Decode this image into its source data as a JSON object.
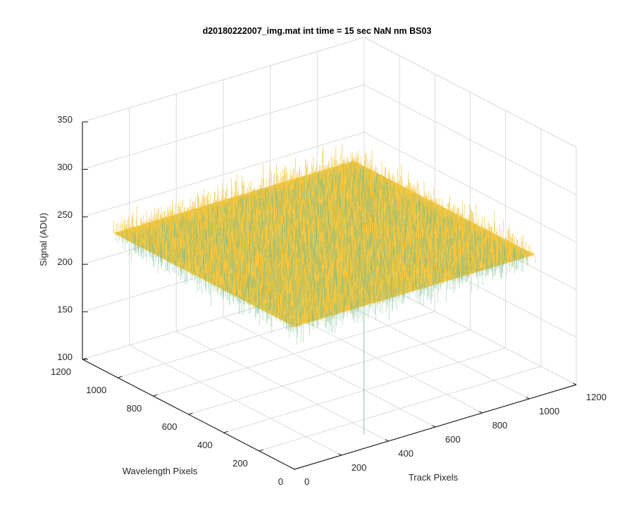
{
  "chart_data": {
    "type": "surface",
    "title": "d20180222007_img.mat int time = 15 sec  NaN nm BS03",
    "xlabel": "Track Pixels",
    "ylabel": "Wavelength Pixels",
    "zlabel": "Signal (ADU)",
    "xlim": [
      0,
      1200
    ],
    "ylim": [
      0,
      1200
    ],
    "zlim": [
      100,
      350
    ],
    "xticks": [
      0,
      200,
      400,
      600,
      800,
      1000,
      1200
    ],
    "yticks": [
      0,
      200,
      400,
      600,
      800,
      1000,
      1200
    ],
    "zticks": [
      100,
      150,
      200,
      250,
      300,
      350
    ],
    "surface": {
      "x_range": [
        0,
        1024
      ],
      "y_range": [
        0,
        1024
      ],
      "mean_signal": 250,
      "noise_min": 225,
      "noise_max": 280,
      "outlier_min": 108
    },
    "grid": true,
    "colors": {
      "high": "#f2c12e",
      "low": "#6fb98f",
      "axis": "#262626",
      "grid": "#dcdcdc"
    }
  }
}
